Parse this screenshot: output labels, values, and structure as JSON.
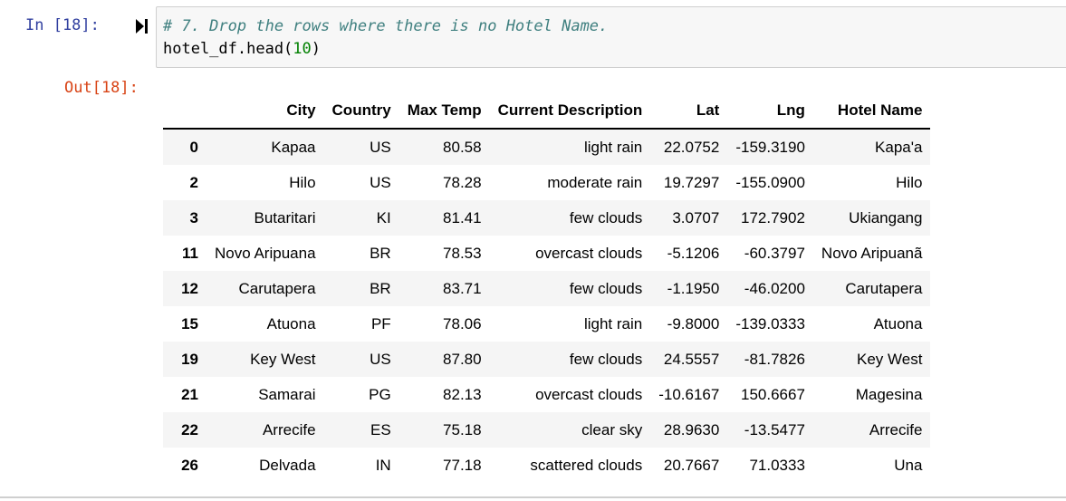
{
  "cell": {
    "in_prompt": "In [18]:",
    "out_prompt": "Out[18]:",
    "code": {
      "comment": "# 7. Drop the rows where there is no Hotel Name.",
      "line2_prefix": "hotel_df.head(",
      "line2_number": "10",
      "line2_suffix": ")"
    },
    "run_icon": "step-forward-icon"
  },
  "dataframe": {
    "columns": [
      "",
      "City",
      "Country",
      "Max Temp",
      "Current Description",
      "Lat",
      "Lng",
      "Hotel Name"
    ],
    "rows": [
      [
        "0",
        "Kapaa",
        "US",
        "80.58",
        "light rain",
        "22.0752",
        "-159.3190",
        "Kapa'a"
      ],
      [
        "2",
        "Hilo",
        "US",
        "78.28",
        "moderate rain",
        "19.7297",
        "-155.0900",
        "Hilo"
      ],
      [
        "3",
        "Butaritari",
        "KI",
        "81.41",
        "few clouds",
        "3.0707",
        "172.7902",
        "Ukiangang"
      ],
      [
        "11",
        "Novo Aripuana",
        "BR",
        "78.53",
        "overcast clouds",
        "-5.1206",
        "-60.3797",
        "Novo Aripuanã"
      ],
      [
        "12",
        "Carutapera",
        "BR",
        "83.71",
        "few clouds",
        "-1.1950",
        "-46.0200",
        "Carutapera"
      ],
      [
        "15",
        "Atuona",
        "PF",
        "78.06",
        "light rain",
        "-9.8000",
        "-139.0333",
        "Atuona"
      ],
      [
        "19",
        "Key West",
        "US",
        "87.80",
        "few clouds",
        "24.5557",
        "-81.7826",
        "Key West"
      ],
      [
        "21",
        "Samarai",
        "PG",
        "82.13",
        "overcast clouds",
        "-10.6167",
        "150.6667",
        "Magesina"
      ],
      [
        "22",
        "Arrecife",
        "ES",
        "75.18",
        "clear sky",
        "28.9630",
        "-13.5477",
        "Arrecife"
      ],
      [
        "26",
        "Delvada",
        "IN",
        "77.18",
        "scattered clouds",
        "20.7667",
        "71.0333",
        "Una"
      ]
    ]
  }
}
